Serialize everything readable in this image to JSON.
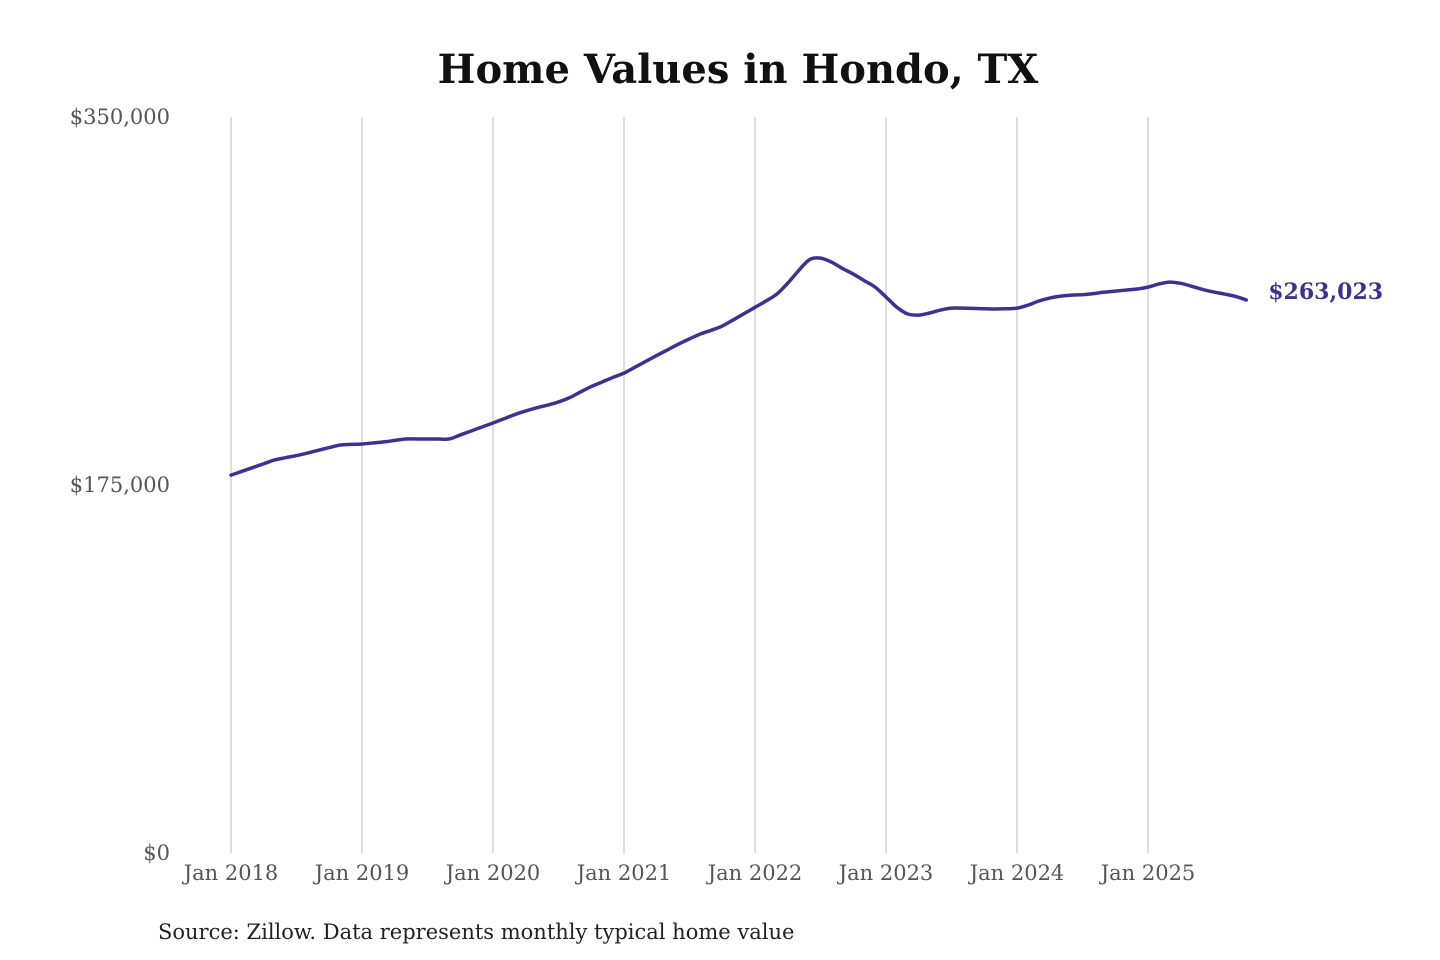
{
  "chart_data": {
    "type": "line",
    "title": "Home Values in Hondo, TX",
    "xlabel": "",
    "ylabel": "",
    "source": "Source: Zillow. Data represents monthly typical home value",
    "ylim": [
      0,
      350000
    ],
    "y_ticks": [
      0,
      175000,
      350000
    ],
    "y_tick_labels": [
      "$0",
      "$175,000",
      "$350,000"
    ],
    "x_ticks": [
      "2018-01",
      "2019-01",
      "2020-01",
      "2021-01",
      "2022-01",
      "2023-01",
      "2024-01",
      "2025-01"
    ],
    "x_tick_labels": [
      "Jan 2018",
      "Jan 2019",
      "Jan 2020",
      "Jan 2021",
      "Jan 2022",
      "Jan 2023",
      "Jan 2024",
      "Jan 2025"
    ],
    "grid": "vertical",
    "line_color": "#3a3393",
    "start": "2018-01",
    "frequency": "monthly",
    "end_label": "$263,023",
    "values": [
      179700,
      181500,
      183300,
      185100,
      186900,
      188000,
      189000,
      190200,
      191500,
      192800,
      194000,
      194300,
      194500,
      195000,
      195500,
      196200,
      196900,
      196900,
      196900,
      196900,
      196900,
      198800,
      200700,
      202600,
      204500,
      206500,
      208500,
      210200,
      211700,
      213000,
      214500,
      216500,
      219200,
      221800,
      224000,
      226200,
      228200,
      231000,
      233800,
      236600,
      239300,
      242000,
      244500,
      246800,
      248600,
      250600,
      253500,
      256500,
      259500,
      262500,
      265800,
      271000,
      277000,
      282200,
      282900,
      281000,
      278000,
      275300,
      272200,
      269100,
      264400,
      259500,
      256300,
      255800,
      256800,
      258200,
      259100,
      259100,
      259000,
      258800,
      258700,
      258800,
      259100,
      260500,
      262500,
      263900,
      264800,
      265300,
      265500,
      266000,
      266700,
      267200,
      267700,
      268200,
      269100,
      270600,
      271500,
      270900,
      269500,
      268000,
      266800,
      265800,
      264700,
      263023
    ]
  }
}
